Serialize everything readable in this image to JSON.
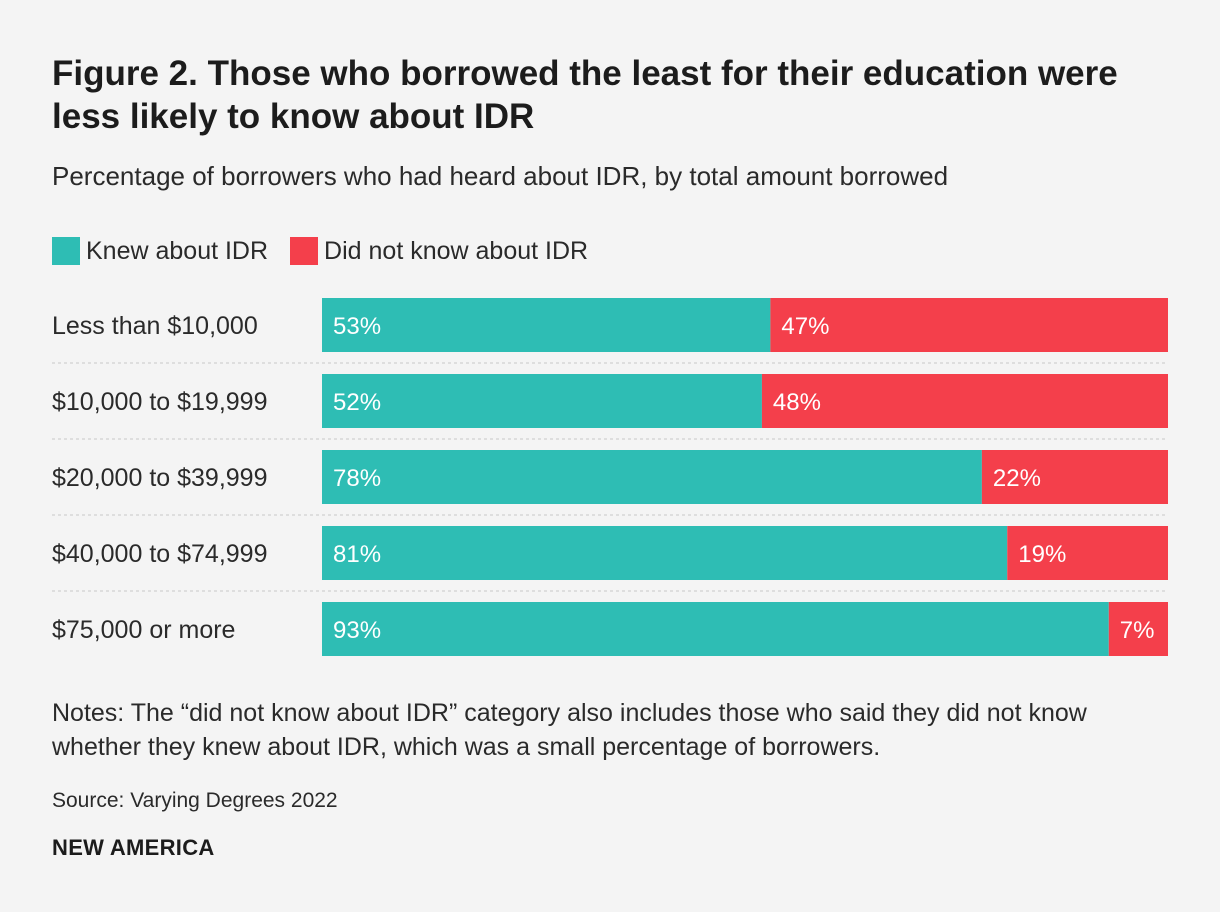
{
  "colors": {
    "knew": "#2ebdb4",
    "did_not_know": "#f43f4b",
    "separator": "#c8c8c8",
    "bar_text": "#ffffff",
    "category_text": "#2a2a2a"
  },
  "legend": {
    "knew_label": "Knew about IDR",
    "did_not_know_label": "Did not know about IDR"
  },
  "notes": "Notes: The “did not know about IDR” category also includes those who said they did not know whether they knew about IDR, which was a small percentage of borrowers.",
  "source": "Source: Varying Degrees 2022",
  "brand": "NEW AMERICA",
  "chart_data": {
    "type": "bar",
    "orientation": "horizontal",
    "stacked": true,
    "title": "Figure 2. Those who borrowed the least for their education were less likely to know about IDR",
    "subtitle": "Percentage of borrowers who had heard about IDR, by total amount borrowed",
    "categories": [
      "Less than $10,000",
      "$10,000 to $19,999",
      "$20,000 to $39,999",
      "$40,000 to $74,999",
      "$75,000 or more"
    ],
    "series": [
      {
        "name": "Knew about IDR",
        "values": [
          53,
          52,
          78,
          81,
          93
        ],
        "labels": [
          "53%",
          "52%",
          "78%",
          "81%",
          "93%"
        ]
      },
      {
        "name": "Did not know about IDR",
        "values": [
          47,
          48,
          22,
          19,
          7
        ],
        "labels": [
          "47%",
          "48%",
          "22%",
          "19%",
          "7%"
        ]
      }
    ],
    "xlim": [
      0,
      100
    ],
    "unit": "%",
    "legend_position": "top-left",
    "grid": false
  }
}
